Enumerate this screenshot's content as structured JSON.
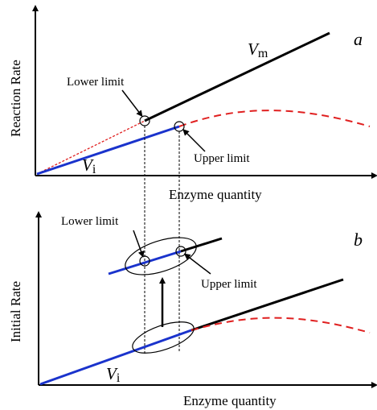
{
  "panels": [
    {
      "id": "a",
      "letter": "a",
      "y_axis_title": "Reaction Rate",
      "x_axis_title": "Enzyme quantity",
      "vm_label": {
        "main": "V",
        "sub": "m"
      },
      "vi_label": {
        "main": "V",
        "sub": "i"
      },
      "lower_limit_label": "Lower limit",
      "upper_limit_label": "Upper limit"
    },
    {
      "id": "b",
      "letter": "b",
      "y_axis_title": "Initial Rate",
      "x_axis_title": "Enzyme quantity",
      "vi_label": {
        "main": "V",
        "sub": "i"
      },
      "lower_limit_label": "Lower limit",
      "upper_limit_label": "Upper limit"
    }
  ],
  "colors": {
    "vi_line": "#1a33cc",
    "vm_line": "#000000",
    "curve_dashed": "#e02020",
    "axis": "#000000"
  }
}
